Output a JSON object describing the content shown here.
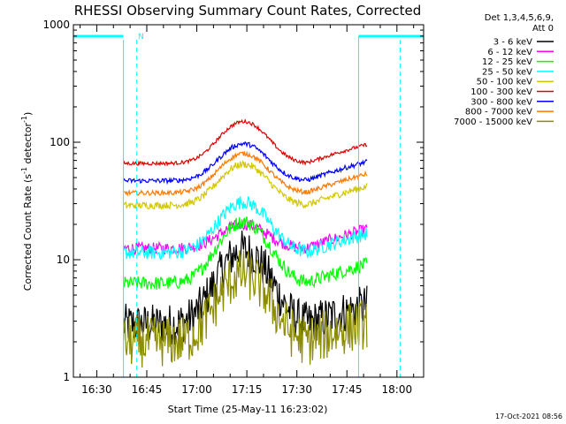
{
  "chart_data": {
    "type": "line",
    "title": "RHESSI Observing Summary Count Rates, Corrected",
    "xlabel": "Start Time (25-May-11 16:23:02)",
    "ylabel_main": "Corrected Count Rate (s",
    "ylabel_sup1": "-1",
    "ylabel_mid": " detector",
    "ylabel_sup2": "-1",
    "ylabel_end": ")",
    "yscale": "log",
    "ylim": [
      1,
      1000
    ],
    "xlim_minutes": [
      0,
      105
    ],
    "x_ticks": [
      "16:30",
      "16:45",
      "17:00",
      "17:15",
      "17:30",
      "17:45",
      "18:00"
    ],
    "x_tick_minutes": [
      7,
      22,
      37,
      52,
      67,
      82,
      97
    ],
    "y_ticks": [
      "1",
      "10",
      "100",
      "1000"
    ],
    "y_tick_values": [
      1,
      10,
      100,
      1000
    ],
    "legend_header_line1": "Det 1,3,4,5,6,9,",
    "legend_header_line2": "Att 0",
    "attenuator_state_label": "N",
    "night_intervals_minutes": [
      [
        0,
        15
      ],
      [
        85.5,
        105
      ]
    ],
    "saa_markers_minutes": [
      19,
      98
    ],
    "data_interval_minutes": [
      15,
      88
    ],
    "series": [
      {
        "name": "3 - 6 keV",
        "color": "#000000",
        "base": 2.8,
        "peak": 12,
        "noise": 0.18
      },
      {
        "name": "6 - 12 keV",
        "color": "#ff00ff",
        "base": 12.5,
        "peak": 20,
        "noise": 0.05
      },
      {
        "name": "12 - 25 keV",
        "color": "#00ff00",
        "base": 6.3,
        "peak": 21,
        "noise": 0.06
      },
      {
        "name": "25 - 50 keV",
        "color": "#00ffff",
        "base": 11.5,
        "peak": 31,
        "noise": 0.06
      },
      {
        "name": "50 - 100 keV",
        "color": "#d4c800",
        "base": 29,
        "peak": 65,
        "noise": 0.03
      },
      {
        "name": "100 - 300 keV",
        "color": "#e00000",
        "base": 66,
        "peak": 150,
        "noise": 0.015
      },
      {
        "name": "300 - 800 keV",
        "color": "#0000ff",
        "base": 47,
        "peak": 97,
        "noise": 0.02
      },
      {
        "name": "800 - 7000 keV",
        "color": "#ff7a00",
        "base": 37,
        "peak": 80,
        "noise": 0.02
      },
      {
        "name": "7000 - 15000 keV",
        "color": "#8c8c00",
        "base": 2.0,
        "peak": 7.5,
        "noise": 0.22
      }
    ],
    "peak_time_minutes": 51,
    "peak_width_minutes": 9,
    "end_rise_factor": 1.45
  },
  "timestamp": "17-Oct-2021 08:56",
  "colors": {
    "night": "#00ffff",
    "axis": "#000000",
    "background": "#ffffff"
  }
}
